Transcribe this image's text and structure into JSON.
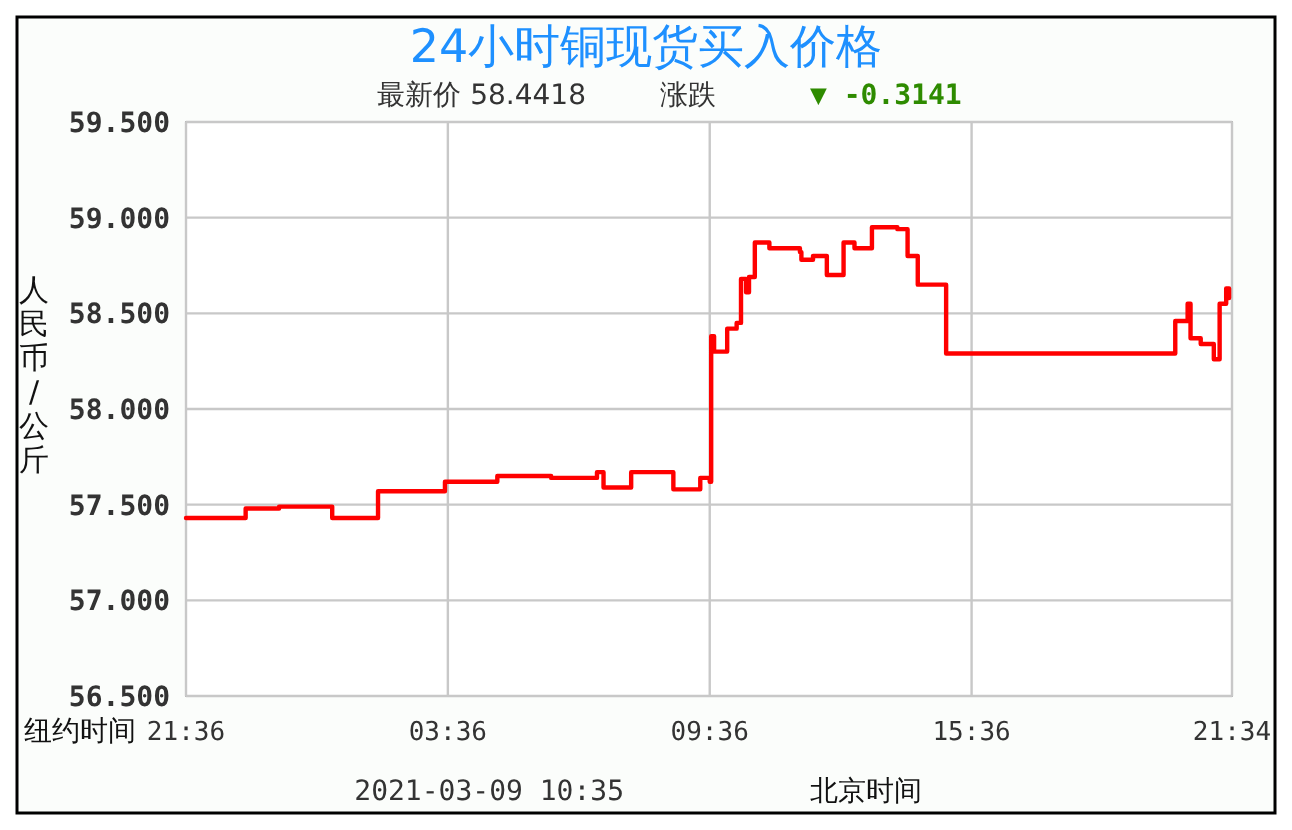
{
  "chart_data": {
    "type": "step",
    "title": "24小时铜现货买入价格",
    "subtitle": "最新价 58.4418",
    "ylabel": "人民币/公斤",
    "xlabel": "纽约时间",
    "annotations": [
      "涨跌",
      "▼ -0.3141",
      "2021-03-09 10:35",
      "北京时间"
    ],
    "xlim": [
      "2021-03-07T21:36",
      "2021-03-08T21:34"
    ],
    "ylim": [
      56.5,
      59.5
    ],
    "xticks": [
      {
        "value": "2021-03-07T21:36",
        "label": "21:36"
      },
      {
        "value": "2021-03-08T03:36",
        "label": "03:36"
      },
      {
        "value": "2021-03-08T09:36",
        "label": "09:36"
      },
      {
        "value": "2021-03-08T15:36",
        "label": "15:36"
      },
      {
        "value": "2021-03-08T21:34",
        "label": "21:34"
      }
    ],
    "yticks": [
      {
        "value": 56.5,
        "label": "56.500"
      },
      {
        "value": 57,
        "label": "57.000"
      },
      {
        "value": 57.5,
        "label": "57.500"
      },
      {
        "value": 58,
        "label": "58.000"
      },
      {
        "value": 58.5,
        "label": "58.500"
      },
      {
        "value": 59,
        "label": "59.000"
      },
      {
        "value": 59.5,
        "label": "59.500"
      }
    ],
    "grid": true,
    "line_style": "solid",
    "marker": "none",
    "series": [
      {
        "color": "#ff0000",
        "x": [
          "2021-03-07T21:36",
          "2021-03-07T22:58",
          "2021-03-07T23:44",
          "2021-03-08T00:57",
          "2021-03-08T02:00",
          "2021-03-08T03:32",
          "2021-03-08T04:44",
          "2021-03-08T05:58",
          "2021-03-08T07:01",
          "2021-03-08T07:10",
          "2021-03-08T07:47",
          "2021-03-08T07:48",
          "2021-03-08T08:41",
          "2021-03-08T08:46",
          "2021-03-08T09:18",
          "2021-03-08T09:23",
          "2021-03-08T09:36",
          "2021-03-08T09:38",
          "2021-03-08T09:42",
          "2021-03-08T09:59",
          "2021-03-08T10:00",
          "2021-03-08T10:13",
          "2021-03-08T10:19",
          "2021-03-08T10:26",
          "2021-03-08T10:30",
          "2021-03-08T10:38",
          "2021-03-08T10:58",
          "2021-03-08T11:40",
          "2021-03-08T11:42",
          "2021-03-08T11:58",
          "2021-03-08T12:16",
          "2021-03-08T12:17",
          "2021-03-08T12:38",
          "2021-03-08T12:40",
          "2021-03-08T12:53",
          "2021-03-08T12:55",
          "2021-03-08T13:18",
          "2021-03-08T13:19",
          "2021-03-08T13:54",
          "2021-03-08T14:08",
          "2021-03-08T14:14",
          "2021-03-08T14:22",
          "2021-03-08T15:00",
          "2021-03-08T15:01",
          "2021-03-08T20:14",
          "2021-03-08T20:16",
          "2021-03-08T20:31",
          "2021-03-08T20:33",
          "2021-03-08T20:37",
          "2021-03-08T20:51",
          "2021-03-08T21:09",
          "2021-03-08T21:17",
          "2021-03-08T21:26",
          "2021-03-08T21:30"
        ],
        "values": [
          57.43,
          57.48,
          57.49,
          57.43,
          57.57,
          57.62,
          57.65,
          57.64,
          57.67,
          57.59,
          57.59,
          57.67,
          57.67,
          57.58,
          57.58,
          57.64,
          57.62,
          58.38,
          58.3,
          58.3,
          58.42,
          58.45,
          58.68,
          58.61,
          58.69,
          58.87,
          58.84,
          58.82,
          58.78,
          58.8,
          58.8,
          58.7,
          58.7,
          58.87,
          58.87,
          58.84,
          58.84,
          58.95,
          58.94,
          58.8,
          58.8,
          58.65,
          58.65,
          58.29,
          58.29,
          58.46,
          58.46,
          58.55,
          58.37,
          58.34,
          58.26,
          58.55,
          58.63,
          58.58
        ]
      }
    ]
  }
}
